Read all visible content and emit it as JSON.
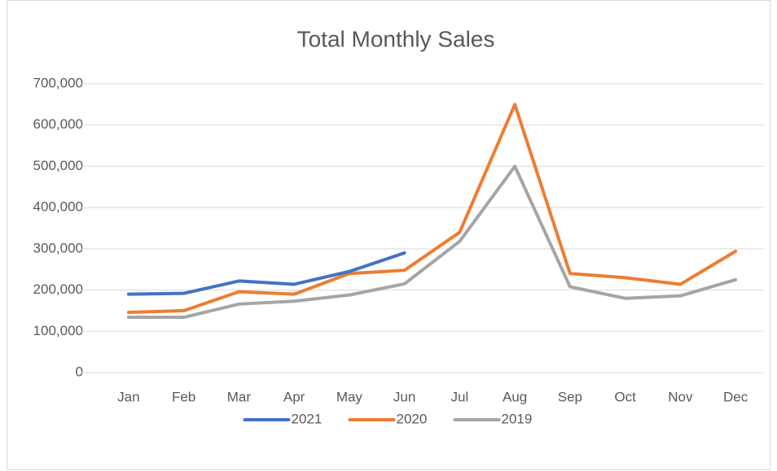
{
  "chart_data": {
    "type": "line",
    "title": "Total Monthly Sales",
    "categories": [
      "Jan",
      "Feb",
      "Mar",
      "Apr",
      "May",
      "Jun",
      "Jul",
      "Aug",
      "Sep",
      "Oct",
      "Nov",
      "Dec"
    ],
    "series": [
      {
        "name": "2021",
        "color": "#4472c4",
        "values": [
          190000,
          192000,
          222000,
          214000,
          245000,
          290000,
          null,
          null,
          null,
          null,
          null,
          null
        ]
      },
      {
        "name": "2020",
        "color": "#ed7d31",
        "values": [
          146000,
          150000,
          196000,
          190000,
          240000,
          248000,
          340000,
          650000,
          240000,
          230000,
          214000,
          294000
        ]
      },
      {
        "name": "2019",
        "color": "#a5a5a5",
        "values": [
          134000,
          134000,
          166000,
          173000,
          188000,
          215000,
          318000,
          500000,
          208000,
          180000,
          186000,
          225000
        ]
      }
    ],
    "ylim": [
      0,
      700000
    ],
    "yticks": [
      0,
      {
        "value": 100000,
        "label": "100,000"
      },
      {
        "value": 200000,
        "label": "200,000"
      },
      {
        "value": 300000,
        "label": "300,000"
      },
      {
        "value": 400000,
        "label": "400,000"
      },
      {
        "value": 500000,
        "label": "500,000"
      },
      {
        "value": 600000,
        "label": "600,000"
      },
      {
        "value": 700000,
        "label": "700,000"
      }
    ],
    "grid": true,
    "legend": "bottom"
  }
}
